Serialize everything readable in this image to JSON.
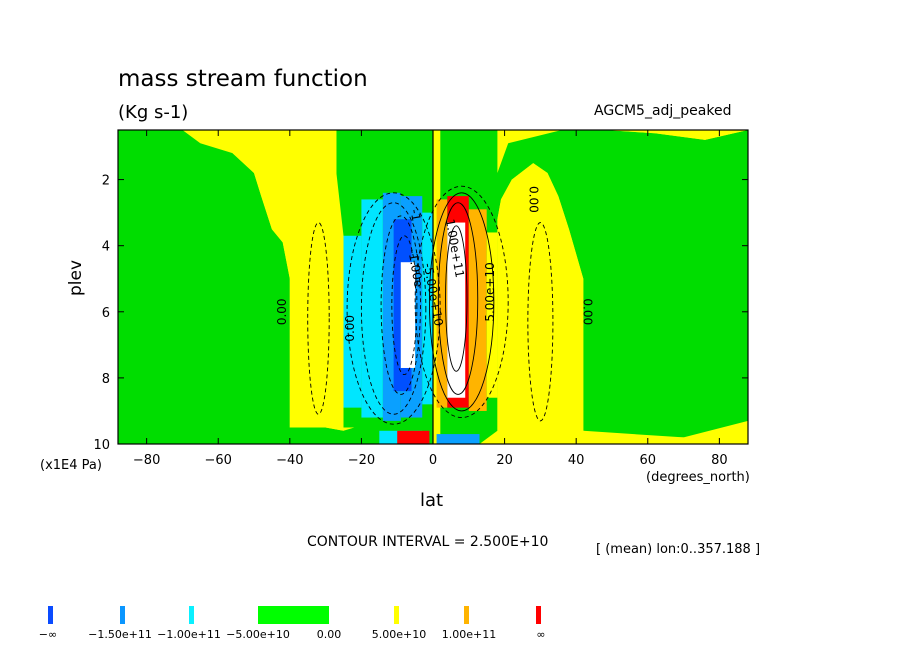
{
  "chart_data": {
    "type": "heatmap",
    "title": "mass stream function",
    "units": "(Kg s-1)",
    "dataset": "AGCM5_adj_peaked",
    "xlabel": "lat",
    "xunit": "(degrees_north)",
    "ylabel": "plev",
    "yunit": "(x1E4 Pa)",
    "xlim": [
      -88,
      88
    ],
    "ylim": [
      10,
      0.5
    ],
    "x_ticks": [
      -80,
      -60,
      -40,
      -20,
      0,
      20,
      40,
      60,
      80
    ],
    "y_ticks": [
      2,
      4,
      6,
      8,
      10
    ],
    "contour_interval_label": "CONTOUR INTERVAL = 2.500E+10",
    "subset_label": "[ (mean) lon:0..357.188 ]",
    "contour_labels": [
      {
        "text": "0.00",
        "lat": -41,
        "plev": 6.0,
        "rot": -90
      },
      {
        "text": "0.00",
        "lat": -22,
        "plev": 6.5,
        "rot": -90
      },
      {
        "text": "0.00",
        "lat": 27,
        "plev": 2.6,
        "rot": 90
      },
      {
        "text": "0.00",
        "lat": 42,
        "plev": 6.0,
        "rot": 90
      },
      {
        "text": "5.00e+10",
        "lat": 17,
        "plev": 5.4,
        "rot": -90
      },
      {
        "text": "1.00e+11",
        "lat": 5,
        "plev": 4.1,
        "rot": 80
      },
      {
        "text": "-1.00e",
        "lat": -6,
        "plev": 4.7,
        "rot": 80
      },
      {
        "text": "-5.00e+10",
        "lat": -1,
        "plev": 5.5,
        "rot": 80
      },
      {
        "text": "-1",
        "lat": -6,
        "plev": 3.1,
        "rot": 80
      }
    ],
    "cells": [
      {
        "lat0": -25,
        "lat1": -20,
        "p0": 3.7,
        "p1": 8.9,
        "level": "-5.00e+10"
      },
      {
        "lat0": -20,
        "lat1": -14,
        "p0": 2.6,
        "p1": 9.2,
        "level": "-5.00e+10"
      },
      {
        "lat0": -14,
        "lat1": -9,
        "p0": 2.4,
        "p1": 9.3,
        "level": "-1.00e+11"
      },
      {
        "lat0": -9,
        "lat1": -3,
        "p0": 2.5,
        "p1": 9.2,
        "level": "-1.00e+11"
      },
      {
        "lat0": -3,
        "lat1": 0,
        "p0": 3.0,
        "p1": 8.8,
        "level": "-5.00e+10"
      },
      {
        "lat0": -11,
        "lat1": -6,
        "p0": 3.2,
        "p1": 8.4,
        "level": "-1.50e+11"
      },
      {
        "lat0": -9,
        "lat1": -5,
        "p0": 4.5,
        "p1": 7.7,
        "level": "below"
      },
      {
        "lat0": 1,
        "lat1": 4,
        "p0": 2.6,
        "p1": 8.9,
        "level": "5.00e+10"
      },
      {
        "lat0": 4,
        "lat1": 10,
        "p0": 2.5,
        "p1": 8.9,
        "level": "1.00e+11"
      },
      {
        "lat0": 10,
        "lat1": 15,
        "p0": 2.9,
        "p1": 9.0,
        "level": "5.00e+10"
      },
      {
        "lat0": 15,
        "lat1": 18,
        "p0": 3.6,
        "p1": 8.6,
        "level": "0.00"
      },
      {
        "lat0": 4,
        "lat1": 9,
        "p0": 3.3,
        "p1": 8.6,
        "level": "above"
      },
      {
        "lat0": 6,
        "lat1": 8,
        "p0": 4.4,
        "p1": 7.4,
        "level": "above"
      },
      {
        "lat0": -15,
        "lat1": -3,
        "p0": 9.6,
        "p1": 10.0,
        "level": "-5.00e+10"
      },
      {
        "lat0": -10,
        "lat1": -1,
        "p0": 9.6,
        "p1": 10.0,
        "level": "1.00e+11"
      },
      {
        "lat0": 1,
        "lat1": 13,
        "p0": 9.7,
        "p1": 10.0,
        "level": "-1.00e+11"
      }
    ]
  },
  "colorbar": {
    "labels": [
      "-∞",
      "-1.50e+11",
      "-1.00e+11",
      "-5.00e+10",
      "0.00",
      "5.00e+10",
      "1.00e+11",
      "∞"
    ],
    "colors": [
      "#0a4bff",
      "#0a96ff",
      "#0af0ff",
      "#00ff00",
      "#ffff00",
      "#ffb400",
      "#ff0000"
    ]
  },
  "colors": {
    "zero_plus": "#ffff00",
    "zero_minus": "#00dd00",
    "neg_050": "#00e6ff",
    "neg_100": "#0aa0ff",
    "neg_150": "#0050ff",
    "below": "#ffffff",
    "pos_050": "#ffb400",
    "pos_100": "#ff0000",
    "above": "#ffffff"
  }
}
